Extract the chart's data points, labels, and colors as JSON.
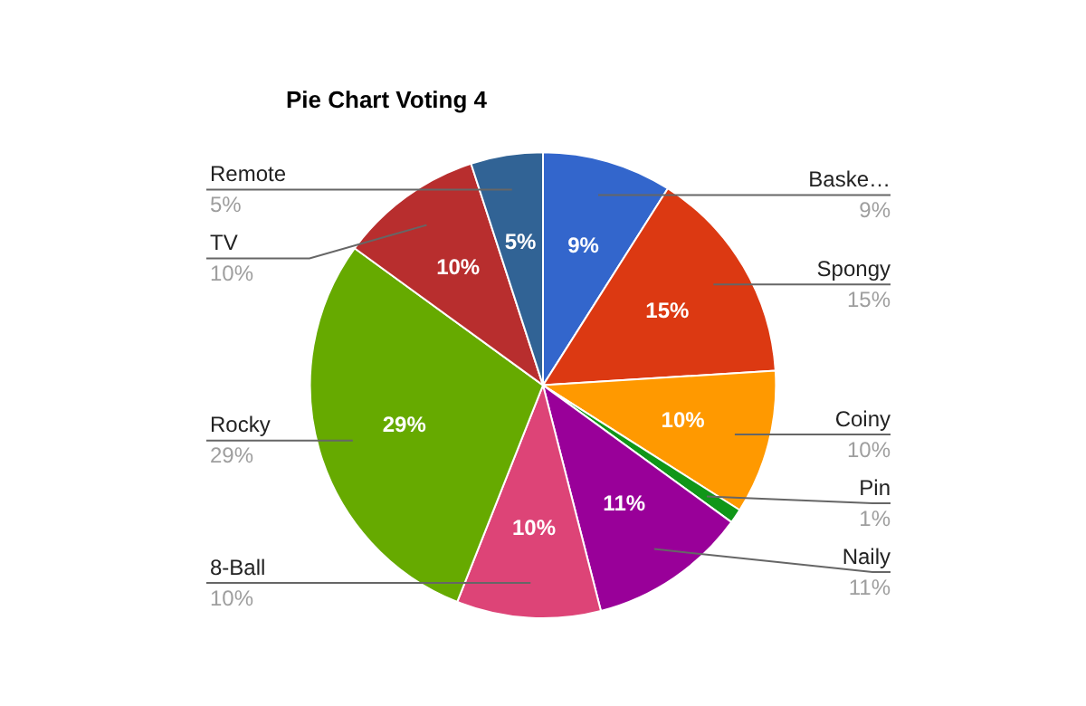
{
  "chart_data": {
    "type": "pie",
    "title": "Pie Chart Voting 4",
    "categories": [
      "Baske…",
      "Spongy",
      "Coiny",
      "Pin",
      "Naily",
      "8-Ball",
      "Rocky",
      "TV",
      "Remote"
    ],
    "values": [
      9,
      15,
      10,
      1,
      11,
      10,
      29,
      10,
      5
    ],
    "value_labels": [
      "9%",
      "15%",
      "10%",
      "1%",
      "11%",
      "10%",
      "29%",
      "10%",
      "5%"
    ],
    "colors": [
      "#3366cc",
      "#dc3912",
      "#ff9900",
      "#109618",
      "#990099",
      "#dd4477",
      "#66aa00",
      "#b82e2e",
      "#316395"
    ]
  }
}
